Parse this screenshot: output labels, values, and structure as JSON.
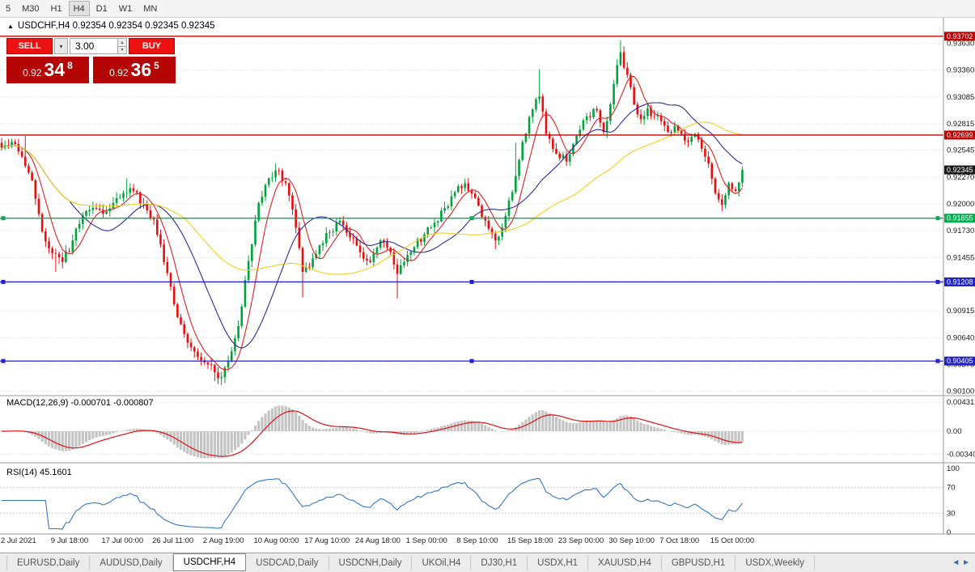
{
  "toolbar": {
    "timeframes": [
      "5",
      "M30",
      "H1",
      "H4",
      "D1",
      "W1",
      "MN"
    ],
    "active": "H4"
  },
  "icons": {
    "collapse": "▲",
    "chevron_down": "▾",
    "spin_up": "▴",
    "spin_down": "▾",
    "tab_scroll": "◄ ►"
  },
  "chart": {
    "title": "USDCHF,H4 0.92354 0.92354 0.92345 0.92345"
  },
  "trade_panel": {
    "sell_label": "SELL",
    "buy_label": "BUY",
    "volume": "3.00",
    "sell_price": {
      "prefix": "0.92",
      "big": "34",
      "sup": "8"
    },
    "buy_price": {
      "prefix": "0.92",
      "big": "36",
      "sup": "5"
    }
  },
  "price_axis": {
    "labels": [
      "0.93630",
      "0.93360",
      "0.93085",
      "0.92815",
      "0.92545",
      "0.92270",
      "0.92000",
      "0.91730",
      "0.91455",
      "0.91185",
      "0.90915",
      "0.90640",
      "0.90370",
      "0.90100"
    ]
  },
  "levels": [
    {
      "value": "0.93702",
      "price": 0.93702,
      "color": "#c00000",
      "selected": false
    },
    {
      "value": "0.92699",
      "price": 0.92699,
      "color": "#c00000",
      "selected": false
    },
    {
      "value": "0.91855",
      "price": 0.91855,
      "color": "#00b050",
      "selected": true
    },
    {
      "value": "0.91208",
      "price": 0.91208,
      "color": "#2222cc",
      "selected": true
    },
    {
      "value": "0.90405",
      "price": 0.90405,
      "color": "#2222cc",
      "selected": true
    }
  ],
  "current_price": {
    "value": "0.92345",
    "price": 0.92345,
    "color": "#1a1a1a"
  },
  "macd_panel": {
    "label": "MACD(12,26,9) -0.000701 -0.000807",
    "axis_labels": [
      "0.00431",
      "0.00",
      "-0.00340"
    ],
    "histogram_color": "#c4c4c4",
    "signal_color": "#e01010"
  },
  "rsi_panel": {
    "label": "RSI(14) 45.1601",
    "axis_labels": [
      "100",
      "70",
      "30",
      "0"
    ],
    "levels": [
      70,
      30
    ],
    "line_color": "#3377cc"
  },
  "tabs": {
    "items": [
      "EURUSD,Daily",
      "AUDUSD,Daily",
      "USDCHF,H4",
      "USDCAD,Daily",
      "USDCNH,Daily",
      "UKOil,H4",
      "DJ30,H1",
      "USDX,H1",
      "XAUUSD,H4",
      "GBPUSD,H1",
      "USDX,Weekly"
    ],
    "active_index": 2
  },
  "chart_data": {
    "type": "candlestick",
    "symbol": "USDCHF",
    "timeframe": "H4",
    "n": 220,
    "price_range": [
      0.9007,
      0.9384
    ],
    "x_labels": [
      "2 Jul 2021",
      "9 Jul 18:00",
      "17 Jul 00:00",
      "26 Jul 11:00",
      "2 Aug 19:00",
      "10 Aug 00:00",
      "17 Aug 10:00",
      "24 Aug 18:00",
      "1 Sep 00:00",
      "8 Sep 10:00",
      "15 Sep 18:00",
      "23 Sep 00:00",
      "30 Sep 10:00",
      "7 Oct 18:00",
      "15 Oct 00:00"
    ],
    "anchors": [
      [
        0,
        0.9257
      ],
      [
        3,
        0.9263
      ],
      [
        6,
        0.9248
      ],
      [
        9,
        0.9224
      ],
      [
        12,
        0.9172
      ],
      [
        15,
        0.915
      ],
      [
        18,
        0.9141
      ],
      [
        21,
        0.9163
      ],
      [
        24,
        0.9188
      ],
      [
        27,
        0.9196
      ],
      [
        30,
        0.919
      ],
      [
        33,
        0.9201
      ],
      [
        36,
        0.9211
      ],
      [
        39,
        0.9213
      ],
      [
        42,
        0.92
      ],
      [
        45,
        0.9184
      ],
      [
        48,
        0.9141
      ],
      [
        51,
        0.9098
      ],
      [
        54,
        0.9068
      ],
      [
        57,
        0.905
      ],
      [
        60,
        0.9039
      ],
      [
        63,
        0.9029
      ],
      [
        65,
        0.9024
      ],
      [
        67,
        0.9041
      ],
      [
        70,
        0.9076
      ],
      [
        73,
        0.9142
      ],
      [
        76,
        0.9201
      ],
      [
        79,
        0.9226
      ],
      [
        81,
        0.9234
      ],
      [
        84,
        0.9221
      ],
      [
        87,
        0.9176
      ],
      [
        89,
        0.9131
      ],
      [
        91,
        0.9136
      ],
      [
        94,
        0.9158
      ],
      [
        97,
        0.9171
      ],
      [
        100,
        0.9183
      ],
      [
        103,
        0.9166
      ],
      [
        106,
        0.9151
      ],
      [
        109,
        0.9141
      ],
      [
        112,
        0.9163
      ],
      [
        115,
        0.9151
      ],
      [
        117,
        0.9129
      ],
      [
        119,
        0.9141
      ],
      [
        122,
        0.9156
      ],
      [
        125,
        0.9169
      ],
      [
        128,
        0.9181
      ],
      [
        131,
        0.9196
      ],
      [
        134,
        0.9212
      ],
      [
        137,
        0.9221
      ],
      [
        140,
        0.9206
      ],
      [
        143,
        0.9183
      ],
      [
        146,
        0.9163
      ],
      [
        148,
        0.9176
      ],
      [
        151,
        0.9212
      ],
      [
        154,
        0.9263
      ],
      [
        157,
        0.9296
      ],
      [
        159,
        0.9309
      ],
      [
        161,
        0.9271
      ],
      [
        164,
        0.9251
      ],
      [
        167,
        0.9243
      ],
      [
        170,
        0.9269
      ],
      [
        173,
        0.9289
      ],
      [
        176,
        0.9295
      ],
      [
        178,
        0.9273
      ],
      [
        180,
        0.9301
      ],
      [
        182,
        0.9341
      ],
      [
        183,
        0.9354
      ],
      [
        185,
        0.9331
      ],
      [
        187,
        0.9301
      ],
      [
        189,
        0.9286
      ],
      [
        191,
        0.9297
      ],
      [
        193,
        0.9289
      ],
      [
        195,
        0.9284
      ],
      [
        197,
        0.9273
      ],
      [
        199,
        0.9279
      ],
      [
        201,
        0.9271
      ],
      [
        203,
        0.9263
      ],
      [
        205,
        0.9271
      ],
      [
        207,
        0.9256
      ],
      [
        209,
        0.9241
      ],
      [
        211,
        0.9211
      ],
      [
        213,
        0.9199
      ],
      [
        215,
        0.9221
      ],
      [
        217,
        0.9213
      ],
      [
        219,
        0.92345
      ]
    ],
    "spikes": [
      [
        7,
        "h",
        0.9269
      ],
      [
        16,
        "l",
        0.9131
      ],
      [
        37,
        "h",
        0.9226
      ],
      [
        63,
        "l",
        0.902
      ],
      [
        65,
        "l",
        0.9016
      ],
      [
        81,
        "h",
        0.9241
      ],
      [
        89,
        "l",
        0.9105
      ],
      [
        117,
        "l",
        0.9104
      ],
      [
        146,
        "l",
        0.9154
      ],
      [
        152,
        "h",
        0.9262
      ],
      [
        159,
        "h",
        0.9337
      ],
      [
        183,
        "h",
        0.9366
      ],
      [
        184,
        "h",
        0.936
      ],
      [
        213,
        "l",
        0.9196
      ]
    ],
    "colors": {
      "bull": "#00a23c",
      "bear": "#e90e0e"
    },
    "moving_averages": [
      {
        "name": "ma-fast",
        "period": 7,
        "color": "#e02020"
      },
      {
        "name": "ma-mid",
        "period": 21,
        "color": "#2b2b9e"
      },
      {
        "name": "ma-slow",
        "period": 55,
        "color": "#f2cf1d"
      }
    ]
  }
}
